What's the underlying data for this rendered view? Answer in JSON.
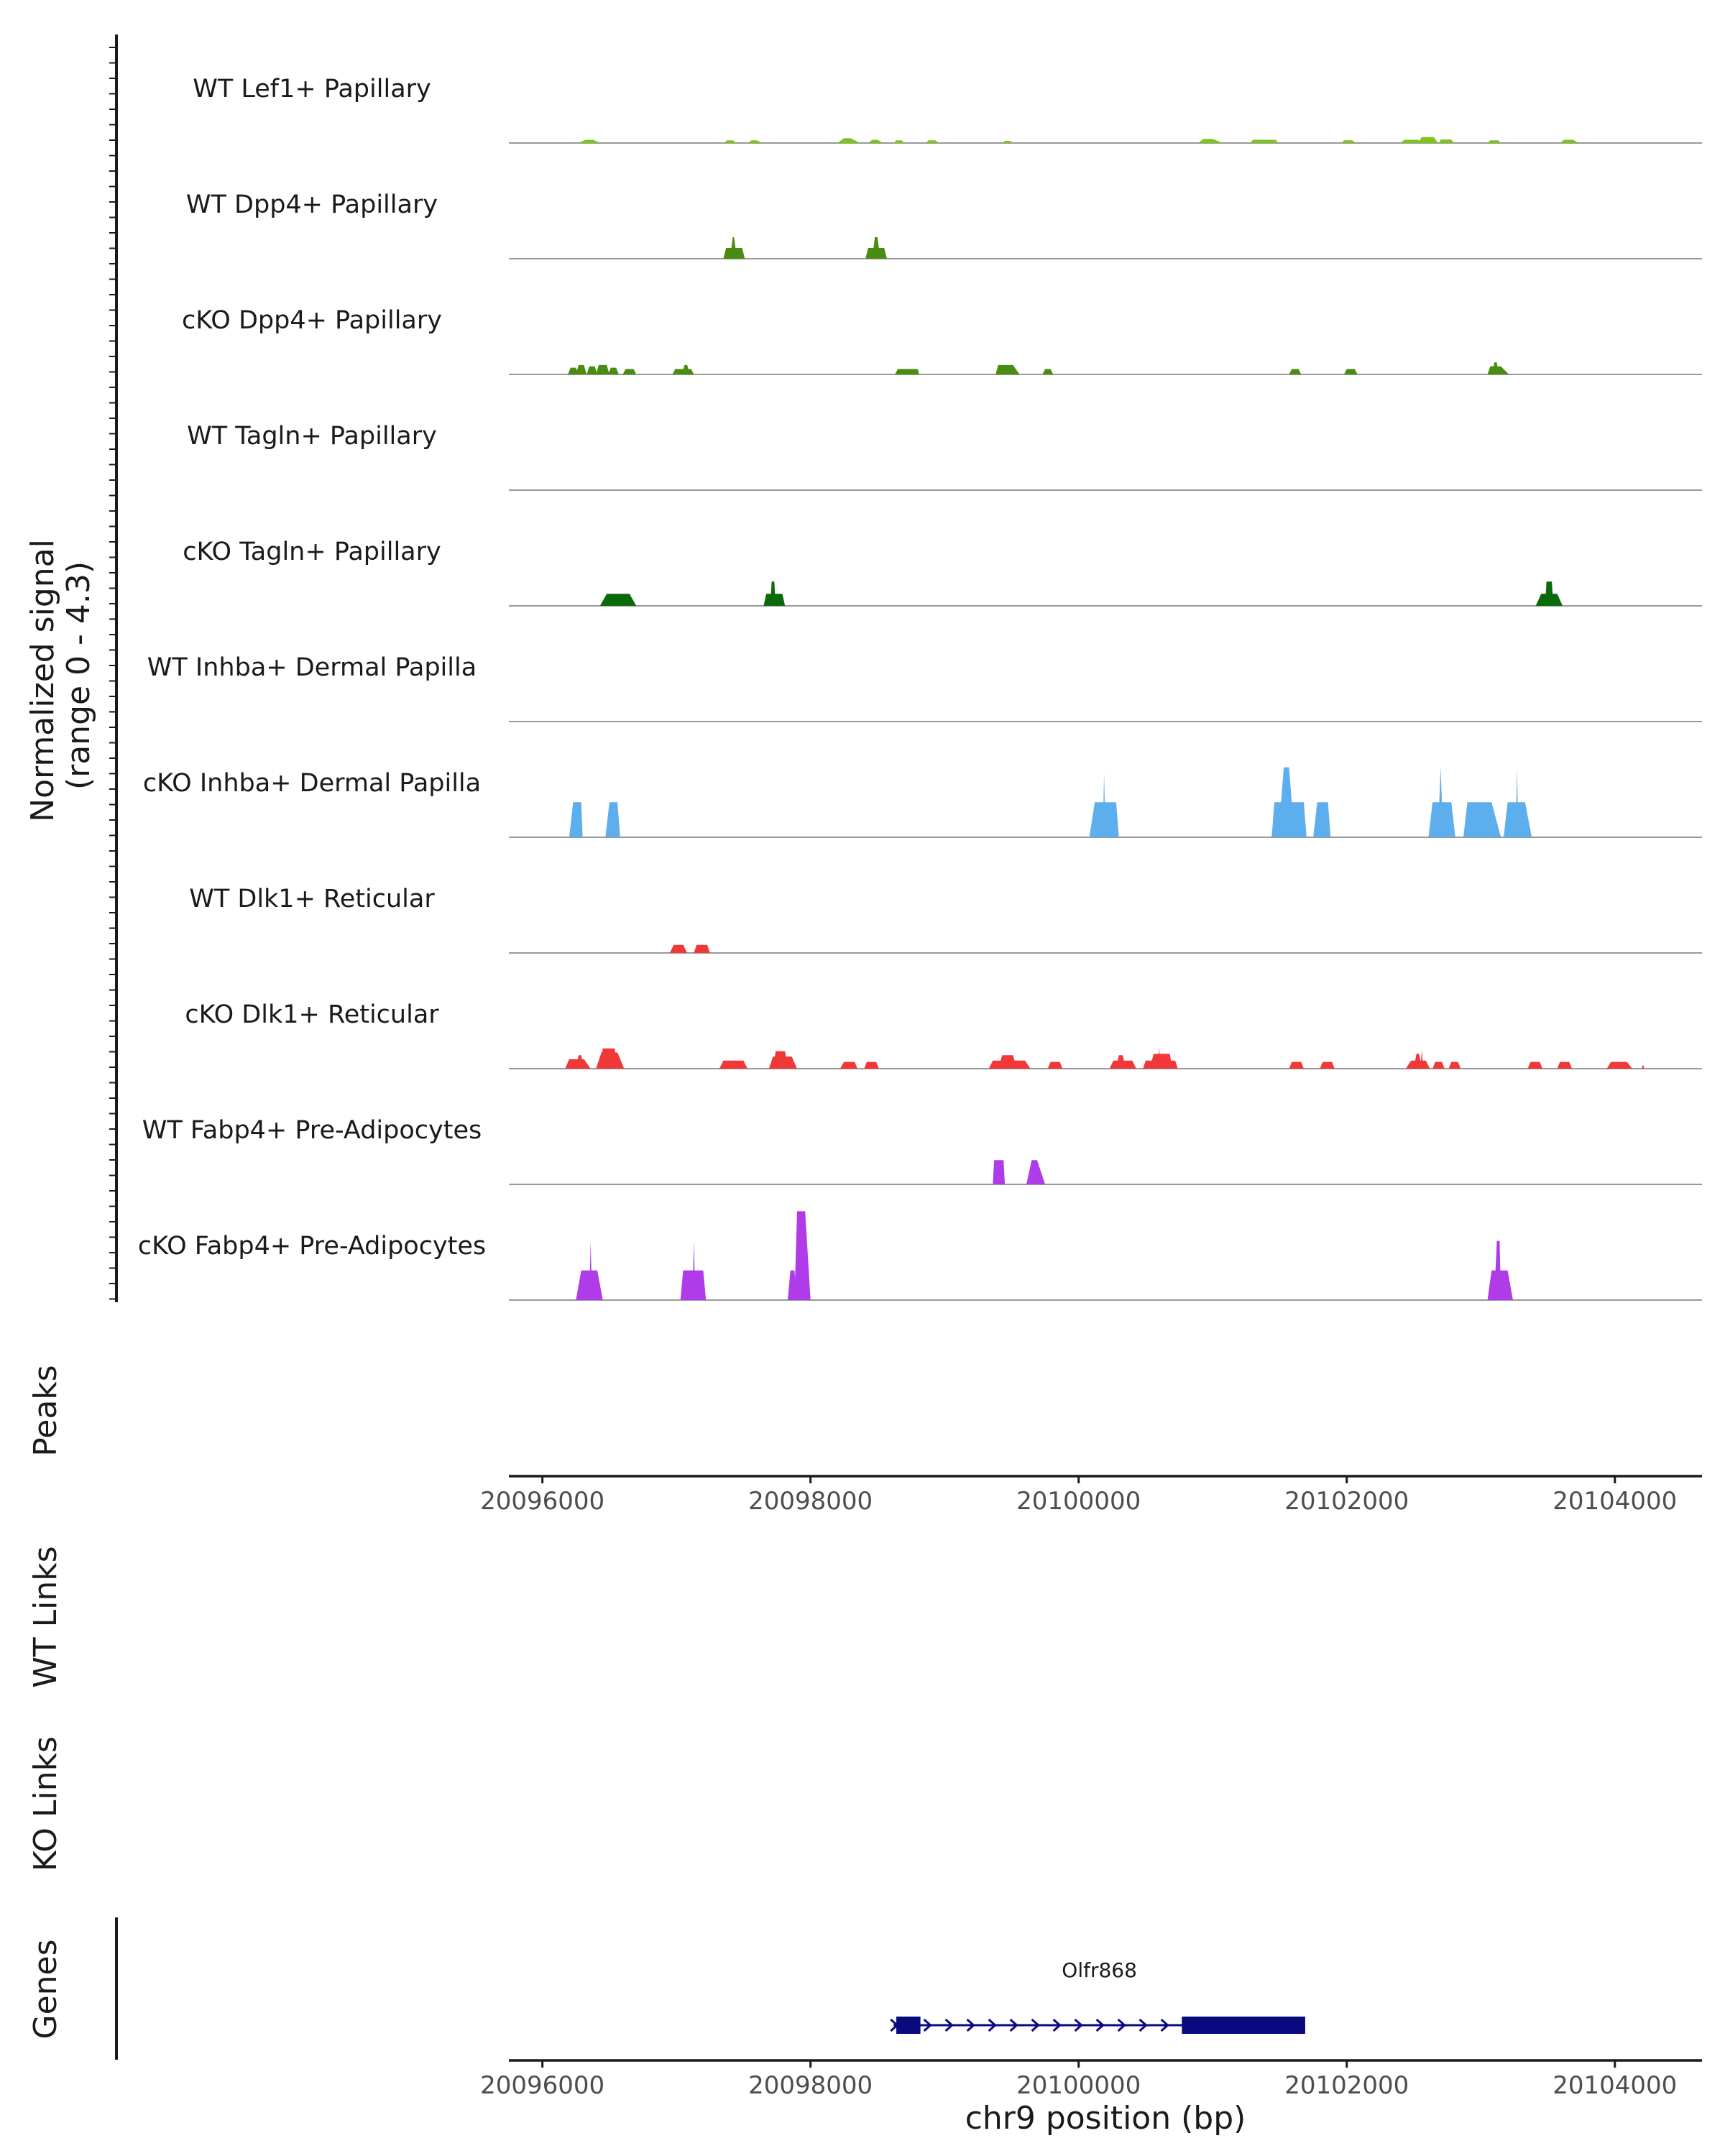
{
  "chart_data": {
    "type": "area",
    "title": "",
    "chromosome": "chr9",
    "xlabel": "chr9 position (bp)",
    "xlim": [
      20095750,
      20104650
    ],
    "x_ticks": [
      20096000,
      20098000,
      20100000,
      20102000,
      20104000
    ],
    "x_tick_labels": [
      "20096000",
      "20098000",
      "20100000",
      "20102000",
      "20104000"
    ],
    "signal_axis_label": [
      "Normalized signal",
      "(range 0 - 4.3)"
    ],
    "ylim": [
      0,
      4.3
    ],
    "series": [
      {
        "name": "WT Lef1+ Papillary",
        "color": "#7dc41e",
        "peaks": [
          [
            20096270,
            20096320,
            20096380,
            20096430,
            0.12
          ],
          [
            20097350,
            20097380,
            20097420,
            20097450,
            0.1
          ],
          [
            20097530,
            20097560,
            20097600,
            20097640,
            0.1
          ],
          [
            20098200,
            20098250,
            20098300,
            20098370,
            0.18
          ],
          [
            20098430,
            20098460,
            20098500,
            20098540,
            0.12
          ],
          [
            20098620,
            20098640,
            20098680,
            20098700,
            0.1
          ],
          [
            20098860,
            20098880,
            20098930,
            20098960,
            0.1
          ],
          [
            20099430,
            20099450,
            20099490,
            20099510,
            0.08
          ],
          [
            20100890,
            20100930,
            20101000,
            20101080,
            0.15
          ],
          [
            20101280,
            20101300,
            20101470,
            20101490,
            0.12
          ],
          [
            20101960,
            20101980,
            20102040,
            20102070,
            0.1
          ],
          [
            20102400,
            20102430,
            20102530,
            20102570,
            0.12
          ],
          [
            20102530,
            20102560,
            20102650,
            20102680,
            0.22
          ],
          [
            20102690,
            20102700,
            20102780,
            20102800,
            0.13
          ],
          [
            20103050,
            20103070,
            20103130,
            20103150,
            0.1
          ],
          [
            20103590,
            20103620,
            20103690,
            20103730,
            0.12
          ]
        ]
      },
      {
        "name": "WT Dpp4+ Papillary",
        "color": "#4a8c11",
        "peaks": [
          [
            20097350,
            20097370,
            20097490,
            20097510,
            0.4
          ],
          [
            20097400,
            20097420,
            20097430,
            20097450,
            0.8
          ],
          [
            20098410,
            20098430,
            20098550,
            20098570,
            0.4
          ],
          [
            20098460,
            20098480,
            20098500,
            20098520,
            0.8
          ]
        ]
      },
      {
        "name": "cKO Dpp4+ Papillary",
        "color": "#4a8c11",
        "peaks": [
          [
            20096190,
            20096210,
            20096250,
            20096270,
            0.25
          ],
          [
            20096250,
            20096270,
            20096310,
            20096330,
            0.35
          ],
          [
            20096330,
            20096350,
            20096390,
            20096410,
            0.3
          ],
          [
            20096400,
            20096420,
            20096480,
            20096500,
            0.35
          ],
          [
            20096490,
            20096510,
            20096550,
            20096570,
            0.25
          ],
          [
            20096600,
            20096620,
            20096680,
            20096700,
            0.2
          ],
          [
            20096970,
            20096990,
            20097110,
            20097130,
            0.2
          ],
          [
            20097040,
            20097060,
            20097080,
            20097100,
            0.35
          ],
          [
            20098630,
            20098650,
            20098800,
            20098810,
            0.2
          ],
          [
            20099380,
            20099400,
            20099510,
            20099560,
            0.35
          ],
          [
            20099730,
            20099750,
            20099790,
            20099810,
            0.2
          ],
          [
            20101570,
            20101590,
            20101640,
            20101660,
            0.2
          ],
          [
            20101980,
            20102000,
            20102060,
            20102080,
            0.2
          ],
          [
            20103050,
            20103070,
            20103150,
            20103210,
            0.3
          ],
          [
            20103090,
            20103100,
            20103120,
            20103130,
            0.45
          ]
        ]
      },
      {
        "name": "WT Tagln+ Papillary",
        "color": "#0a6a0a",
        "peaks": []
      },
      {
        "name": "cKO Tagln+ Papillary",
        "color": "#0a6a0a",
        "peaks": [
          [
            20096430,
            20096480,
            20096650,
            20096700,
            0.45
          ],
          [
            20097650,
            20097670,
            20097790,
            20097810,
            0.45
          ],
          [
            20097700,
            20097710,
            20097730,
            20097740,
            0.9
          ],
          [
            20103410,
            20103450,
            20103570,
            20103610,
            0.45
          ],
          [
            20103480,
            20103490,
            20103530,
            20103540,
            0.9
          ]
        ]
      },
      {
        "name": "WT Inhba+ Dermal Papilla",
        "color": "#5daeed",
        "peaks": []
      },
      {
        "name": "cKO Inhba+ Dermal Papilla",
        "color": "#5daeed",
        "peaks": [
          [
            20096200,
            20096230,
            20096290,
            20096300,
            1.3
          ],
          [
            20096470,
            20096500,
            20096560,
            20096580,
            1.3
          ],
          [
            20100080,
            20100120,
            20100280,
            20100300,
            1.3
          ],
          [
            20100180,
            20100190,
            20100190,
            20100200,
            2.4
          ],
          [
            20101440,
            20101460,
            20101680,
            20101700,
            1.3
          ],
          [
            20101490,
            20101530,
            20101570,
            20101610,
            2.6
          ],
          [
            20101750,
            20101780,
            20101860,
            20101880,
            1.3
          ],
          [
            20102610,
            20102640,
            20102780,
            20102810,
            1.3
          ],
          [
            20102680,
            20102700,
            20102700,
            20102720,
            2.6
          ],
          [
            20102870,
            20102900,
            20103080,
            20103150,
            1.3
          ],
          [
            20103170,
            20103200,
            20103330,
            20103380,
            1.3
          ],
          [
            20103260,
            20103270,
            20103270,
            20103280,
            2.6
          ]
        ]
      },
      {
        "name": "WT Dlk1+ Reticular",
        "color": "#f03838",
        "peaks": [
          [
            20096950,
            20096980,
            20097050,
            20097080,
            0.3
          ],
          [
            20097130,
            20097150,
            20097230,
            20097250,
            0.3
          ]
        ]
      },
      {
        "name": "cKO Dlk1+ Reticular",
        "color": "#f03838",
        "peaks": [
          [
            20096170,
            20096200,
            20096310,
            20096360,
            0.35
          ],
          [
            20096250,
            20096270,
            20096290,
            20096310,
            0.5
          ],
          [
            20096400,
            20096440,
            20096560,
            20096610,
            0.6
          ],
          [
            20096430,
            20096450,
            20096540,
            20096560,
            0.75
          ],
          [
            20097320,
            20097350,
            20097500,
            20097530,
            0.3
          ],
          [
            20097690,
            20097720,
            20097860,
            20097900,
            0.45
          ],
          [
            20097720,
            20097740,
            20097810,
            20097830,
            0.65
          ],
          [
            20098220,
            20098250,
            20098330,
            20098350,
            0.25
          ],
          [
            20098400,
            20098420,
            20098490,
            20098510,
            0.25
          ],
          [
            20099330,
            20099360,
            20099600,
            20099640,
            0.3
          ],
          [
            20099400,
            20099430,
            20099510,
            20099540,
            0.5
          ],
          [
            20099770,
            20099790,
            20099860,
            20099880,
            0.25
          ],
          [
            20100230,
            20100260,
            20100400,
            20100430,
            0.3
          ],
          [
            20100280,
            20100300,
            20100330,
            20100350,
            0.5
          ],
          [
            20100480,
            20100500,
            20100720,
            20100740,
            0.3
          ],
          [
            20100530,
            20100560,
            20100680,
            20100700,
            0.55
          ],
          [
            20100590,
            20100600,
            20100600,
            20100610,
            0.8
          ],
          [
            20101570,
            20101590,
            20101660,
            20101680,
            0.25
          ],
          [
            20101800,
            20101820,
            20101890,
            20101910,
            0.25
          ],
          [
            20102440,
            20102480,
            20102590,
            20102620,
            0.3
          ],
          [
            20102500,
            20102520,
            20102540,
            20102560,
            0.55
          ],
          [
            20102550,
            20102560,
            20102560,
            20102570,
            0.7
          ],
          [
            20102640,
            20102660,
            20102710,
            20102730,
            0.25
          ],
          [
            20102760,
            20102780,
            20102830,
            20102850,
            0.25
          ],
          [
            20103350,
            20103370,
            20103440,
            20103460,
            0.25
          ],
          [
            20103570,
            20103590,
            20103660,
            20103680,
            0.25
          ],
          [
            20103940,
            20103970,
            20104090,
            20104130,
            0.25
          ],
          [
            20104200,
            20104210,
            20104210,
            20104220,
            0.15
          ]
        ]
      },
      {
        "name": "WT Fabp4+ Pre-Adipocytes",
        "color": "#b03be8",
        "peaks": [
          [
            20099360,
            20099370,
            20099440,
            20099450,
            0.9
          ],
          [
            20099610,
            20099650,
            20099690,
            20099750,
            0.9
          ]
        ]
      },
      {
        "name": "cKO Fabp4+ Pre-Adipocytes",
        "color": "#b03be8",
        "peaks": [
          [
            20096250,
            20096290,
            20096410,
            20096450,
            1.1
          ],
          [
            20096350,
            20096360,
            20096360,
            20096370,
            2.2
          ],
          [
            20097030,
            20097050,
            20097200,
            20097220,
            1.1
          ],
          [
            20097120,
            20097130,
            20097130,
            20097140,
            2.2
          ],
          [
            20097830,
            20097850,
            20097880,
            20097900,
            1.1
          ],
          [
            20097880,
            20097900,
            20097960,
            20098000,
            3.3
          ],
          [
            20103050,
            20103080,
            20103200,
            20103240,
            1.1
          ],
          [
            20103100,
            20103120,
            20103140,
            20103150,
            2.2
          ]
        ]
      }
    ],
    "peaks_track": {
      "label": "Peaks",
      "items": []
    },
    "link_tracks": [
      {
        "label": "WT Links",
        "items": []
      },
      {
        "label": "KO Links",
        "items": []
      }
    ],
    "genes_track": {
      "label": "Genes",
      "genes": [
        {
          "name": "Olfr868",
          "start": 20098620,
          "end": 20101690,
          "strand": "+",
          "exons": [
            [
              20098640,
              20098820
            ],
            [
              20100770,
              20101690
            ]
          ]
        }
      ]
    },
    "colors": {
      "track_baseline": "#999999",
      "axis": "#1a1a1a",
      "gene": "#0a0a7f"
    }
  }
}
